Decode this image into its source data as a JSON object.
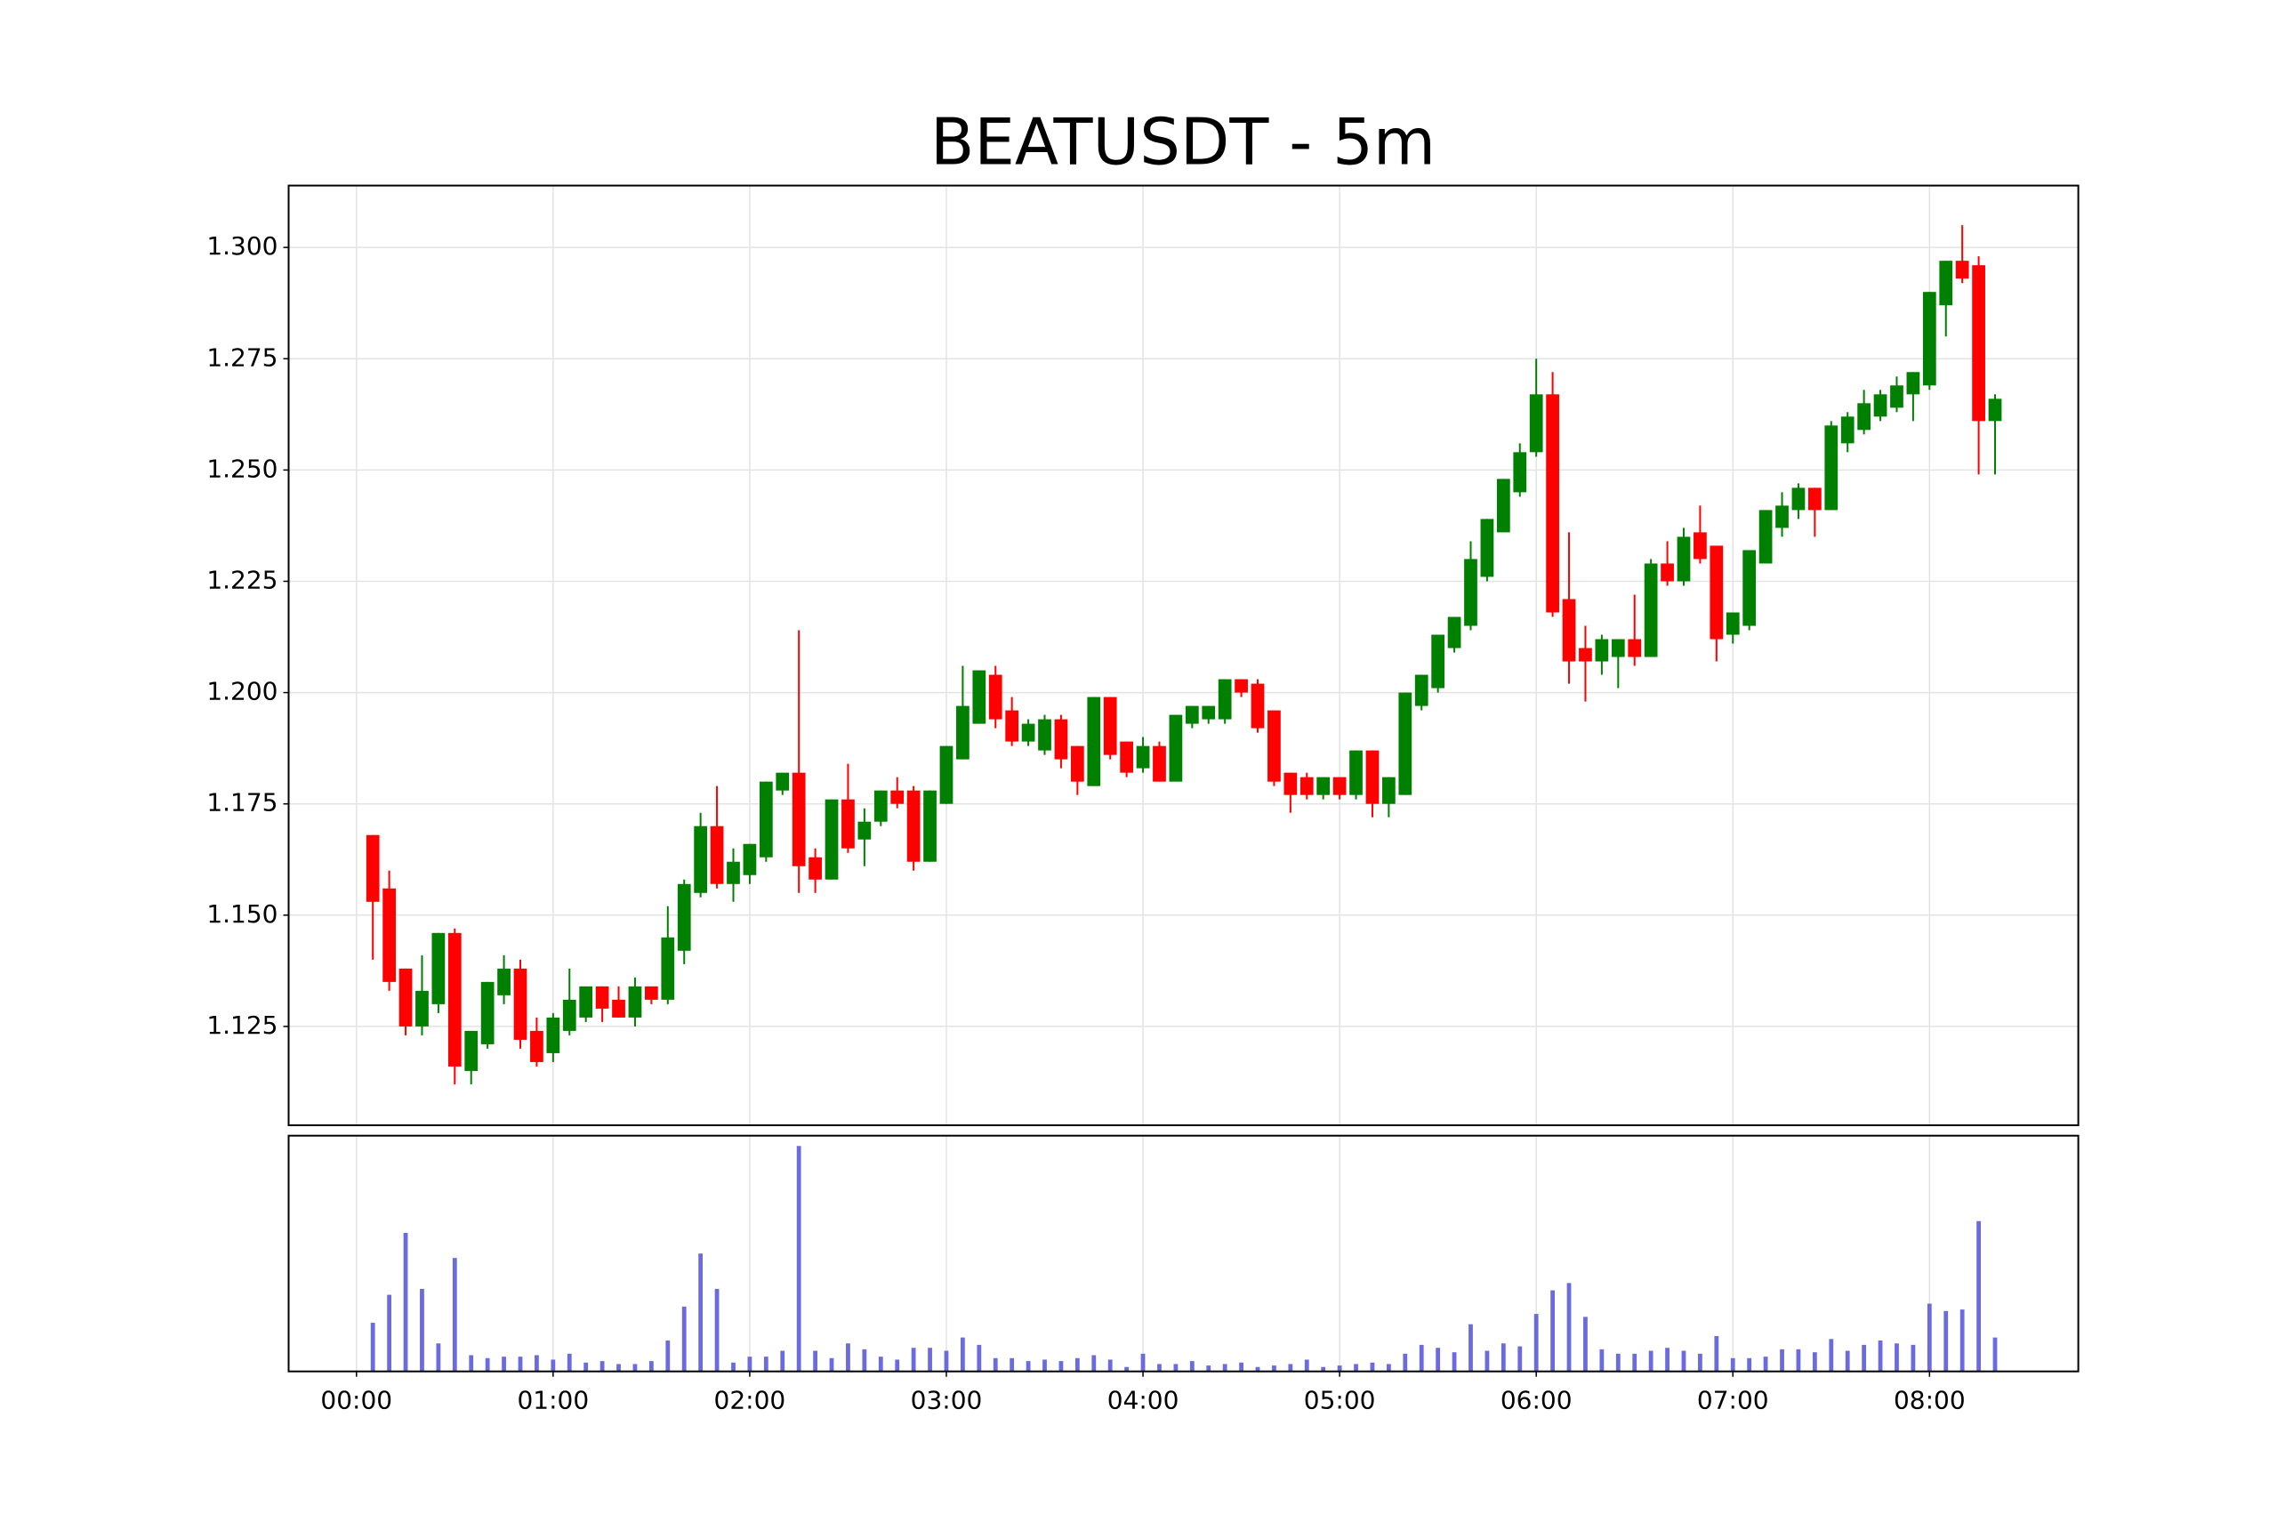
{
  "chart_data": {
    "type": "candlestick",
    "title": "BEATUSDT - 5m",
    "x": [
      5,
      10,
      15,
      20,
      25,
      30,
      35,
      40,
      45,
      50,
      55,
      60,
      65,
      70,
      75,
      80,
      85,
      90,
      95,
      100,
      105,
      110,
      115,
      120,
      125,
      130,
      135,
      140,
      145,
      150,
      155,
      160,
      165,
      170,
      175,
      180,
      185,
      190,
      195,
      200,
      205,
      210,
      215,
      220,
      225,
      230,
      235,
      240,
      245,
      250,
      255,
      260,
      265,
      270,
      275,
      280,
      285,
      290,
      295,
      300,
      305,
      310,
      315,
      320,
      325,
      330,
      335,
      340,
      345,
      350,
      355,
      360,
      365,
      370,
      375,
      380,
      385,
      390,
      395,
      400,
      405,
      410,
      415,
      420,
      425,
      430,
      435,
      440,
      445,
      450,
      455,
      460,
      465,
      470,
      475,
      480,
      485,
      490,
      495,
      500
    ],
    "open": [
      1.168,
      1.156,
      1.138,
      1.125,
      1.13,
      1.146,
      1.115,
      1.121,
      1.132,
      1.138,
      1.124,
      1.119,
      1.124,
      1.127,
      1.134,
      1.131,
      1.127,
      1.134,
      1.131,
      1.142,
      1.155,
      1.17,
      1.157,
      1.159,
      1.163,
      1.178,
      1.182,
      1.163,
      1.158,
      1.176,
      1.167,
      1.171,
      1.178,
      1.178,
      1.162,
      1.175,
      1.185,
      1.193,
      1.204,
      1.196,
      1.189,
      1.187,
      1.194,
      1.188,
      1.179,
      1.199,
      1.189,
      1.183,
      1.188,
      1.18,
      1.193,
      1.194,
      1.194,
      1.203,
      1.202,
      1.196,
      1.182,
      1.181,
      1.177,
      1.181,
      1.177,
      1.187,
      1.175,
      1.177,
      1.197,
      1.201,
      1.21,
      1.215,
      1.226,
      1.236,
      1.245,
      1.254,
      1.267,
      1.221,
      1.21,
      1.207,
      1.208,
      1.212,
      1.208,
      1.229,
      1.225,
      1.236,
      1.233,
      1.213,
      1.215,
      1.229,
      1.237,
      1.241,
      1.246,
      1.241,
      1.256,
      1.259,
      1.262,
      1.264,
      1.267,
      1.269,
      1.287,
      1.297,
      1.296,
      1.261
    ],
    "high": [
      1.168,
      1.16,
      1.138,
      1.141,
      1.146,
      1.147,
      1.124,
      1.135,
      1.141,
      1.14,
      1.127,
      1.128,
      1.138,
      1.134,
      1.134,
      1.134,
      1.136,
      1.134,
      1.152,
      1.158,
      1.173,
      1.179,
      1.165,
      1.166,
      1.18,
      1.182,
      1.214,
      1.165,
      1.176,
      1.184,
      1.174,
      1.178,
      1.181,
      1.179,
      1.178,
      1.188,
      1.206,
      1.205,
      1.206,
      1.199,
      1.194,
      1.195,
      1.195,
      1.188,
      1.199,
      1.199,
      1.189,
      1.19,
      1.189,
      1.195,
      1.197,
      1.197,
      1.203,
      1.203,
      1.203,
      1.196,
      1.182,
      1.182,
      1.181,
      1.181,
      1.187,
      1.187,
      1.181,
      1.2,
      1.204,
      1.213,
      1.217,
      1.234,
      1.239,
      1.248,
      1.256,
      1.275,
      1.272,
      1.236,
      1.215,
      1.213,
      1.212,
      1.222,
      1.23,
      1.234,
      1.237,
      1.242,
      1.233,
      1.218,
      1.232,
      1.241,
      1.245,
      1.247,
      1.246,
      1.261,
      1.263,
      1.268,
      1.268,
      1.271,
      1.272,
      1.29,
      1.297,
      1.305,
      1.298,
      1.267
    ],
    "low": [
      1.14,
      1.133,
      1.123,
      1.123,
      1.128,
      1.112,
      1.112,
      1.12,
      1.13,
      1.12,
      1.116,
      1.117,
      1.123,
      1.126,
      1.126,
      1.127,
      1.125,
      1.13,
      1.13,
      1.139,
      1.154,
      1.156,
      1.153,
      1.157,
      1.162,
      1.177,
      1.155,
      1.155,
      1.158,
      1.164,
      1.161,
      1.17,
      1.174,
      1.16,
      1.162,
      1.175,
      1.185,
      1.193,
      1.192,
      1.188,
      1.188,
      1.186,
      1.183,
      1.177,
      1.179,
      1.185,
      1.181,
      1.182,
      1.18,
      1.18,
      1.192,
      1.193,
      1.193,
      1.199,
      1.191,
      1.179,
      1.173,
      1.176,
      1.176,
      1.176,
      1.176,
      1.172,
      1.172,
      1.177,
      1.196,
      1.2,
      1.209,
      1.214,
      1.225,
      1.236,
      1.244,
      1.253,
      1.217,
      1.202,
      1.198,
      1.204,
      1.201,
      1.206,
      1.208,
      1.224,
      1.224,
      1.229,
      1.207,
      1.211,
      1.214,
      1.229,
      1.235,
      1.239,
      1.235,
      1.241,
      1.254,
      1.258,
      1.261,
      1.263,
      1.261,
      1.268,
      1.28,
      1.292,
      1.249,
      1.249
    ],
    "close": [
      1.153,
      1.135,
      1.125,
      1.133,
      1.146,
      1.116,
      1.124,
      1.135,
      1.138,
      1.122,
      1.117,
      1.127,
      1.131,
      1.134,
      1.129,
      1.127,
      1.134,
      1.131,
      1.145,
      1.157,
      1.17,
      1.157,
      1.162,
      1.166,
      1.18,
      1.182,
      1.161,
      1.158,
      1.176,
      1.165,
      1.171,
      1.178,
      1.175,
      1.162,
      1.178,
      1.188,
      1.197,
      1.205,
      1.194,
      1.189,
      1.193,
      1.194,
      1.185,
      1.18,
      1.199,
      1.186,
      1.182,
      1.188,
      1.18,
      1.195,
      1.197,
      1.197,
      1.203,
      1.2,
      1.192,
      1.18,
      1.177,
      1.177,
      1.181,
      1.177,
      1.187,
      1.175,
      1.181,
      1.2,
      1.204,
      1.213,
      1.217,
      1.23,
      1.239,
      1.248,
      1.254,
      1.267,
      1.218,
      1.207,
      1.207,
      1.212,
      1.212,
      1.208,
      1.229,
      1.225,
      1.235,
      1.23,
      1.212,
      1.218,
      1.232,
      1.241,
      1.242,
      1.246,
      1.241,
      1.26,
      1.262,
      1.265,
      1.267,
      1.269,
      1.272,
      1.29,
      1.297,
      1.293,
      1.261,
      1.266
    ],
    "volumes": [
      33,
      52,
      94,
      56,
      19,
      77,
      11,
      9,
      10,
      10,
      11,
      8,
      12,
      6,
      7,
      5,
      5,
      7,
      21,
      44,
      80,
      56,
      6,
      10,
      10,
      14,
      153,
      14,
      9,
      19,
      15,
      10,
      8,
      16,
      16,
      14,
      23,
      18,
      9,
      9,
      7,
      8,
      7,
      9,
      11,
      8,
      3,
      12,
      5,
      5,
      7,
      4,
      5,
      6,
      3,
      4,
      5,
      8,
      3,
      4,
      5,
      6,
      5,
      12,
      18,
      16,
      13,
      32,
      14,
      19,
      17,
      39,
      55,
      60,
      37,
      15,
      12,
      12,
      14,
      16,
      14,
      12,
      24,
      9,
      9,
      10,
      15,
      15,
      13,
      22,
      14,
      18,
      21,
      19,
      18,
      46,
      41,
      42,
      102,
      23
    ],
    "up_color": "#008000",
    "down_color": "#ff0000",
    "volume_color": "#6b6bdf",
    "xlim": [
      -20.7,
      525.4
    ],
    "xticks": [
      {
        "value": 0,
        "label": "00:00"
      },
      {
        "value": 60,
        "label": "01:00"
      },
      {
        "value": 120,
        "label": "02:00"
      },
      {
        "value": 180,
        "label": "03:00"
      },
      {
        "value": 240,
        "label": "04:00"
      },
      {
        "value": 300,
        "label": "05:00"
      },
      {
        "value": 360,
        "label": "06:00"
      },
      {
        "value": 420,
        "label": "07:00"
      },
      {
        "value": 480,
        "label": "08:00"
      }
    ],
    "ylim": [
      1.1028,
      1.3139
    ],
    "yticks": [
      1.125,
      {
        "value": 1.15,
        "label": "1.150"
      },
      1.175,
      {
        "value": 1.2,
        "label": "1.200"
      },
      1.225,
      {
        "value": 1.25,
        "label": "1.250"
      },
      1.275,
      {
        "value": 1.3,
        "label": "1.300"
      }
    ],
    "volume_ylim": [
      0,
      160
    ],
    "grid": true
  }
}
